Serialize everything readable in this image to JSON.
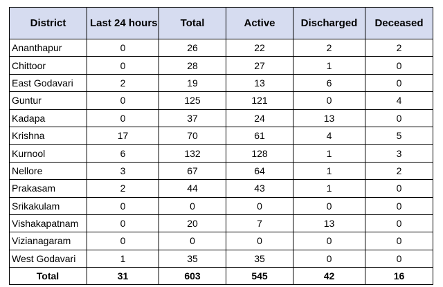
{
  "headers": [
    "District",
    "Last 24 hours",
    "Total",
    "Active",
    "Discharged",
    "Deceased"
  ],
  "rows": [
    {
      "district": "Ananthapur",
      "last24": "0",
      "total": "26",
      "active": "22",
      "discharged": "2",
      "deceased": "2"
    },
    {
      "district": "Chittoor",
      "last24": "0",
      "total": "28",
      "active": "27",
      "discharged": "1",
      "deceased": "0"
    },
    {
      "district": "East Godavari",
      "last24": "2",
      "total": "19",
      "active": "13",
      "discharged": "6",
      "deceased": "0"
    },
    {
      "district": "Guntur",
      "last24": "0",
      "total": "125",
      "active": "121",
      "discharged": "0",
      "deceased": "4"
    },
    {
      "district": "Kadapa",
      "last24": "0",
      "total": "37",
      "active": "24",
      "discharged": "13",
      "deceased": "0"
    },
    {
      "district": "Krishna",
      "last24": "17",
      "total": "70",
      "active": "61",
      "discharged": "4",
      "deceased": "5"
    },
    {
      "district": "Kurnool",
      "last24": "6",
      "total": "132",
      "active": "128",
      "discharged": "1",
      "deceased": "3"
    },
    {
      "district": "Nellore",
      "last24": "3",
      "total": "67",
      "active": "64",
      "discharged": "1",
      "deceased": "2"
    },
    {
      "district": "Prakasam",
      "last24": "2",
      "total": "44",
      "active": "43",
      "discharged": "1",
      "deceased": "0"
    },
    {
      "district": "Srikakulam",
      "last24": "0",
      "total": "0",
      "active": "0",
      "discharged": "0",
      "deceased": "0"
    },
    {
      "district": "Vishakapatnam",
      "last24": "0",
      "total": "20",
      "active": "7",
      "discharged": "13",
      "deceased": "0"
    },
    {
      "district": "Vizianagaram",
      "last24": "0",
      "total": "0",
      "active": "0",
      "discharged": "0",
      "deceased": "0"
    },
    {
      "district": "West Godavari",
      "last24": "1",
      "total": "35",
      "active": "35",
      "discharged": "0",
      "deceased": "0"
    }
  ],
  "totals": {
    "label": "Total",
    "last24": "31",
    "total": "603",
    "active": "545",
    "discharged": "42",
    "deceased": "16"
  }
}
